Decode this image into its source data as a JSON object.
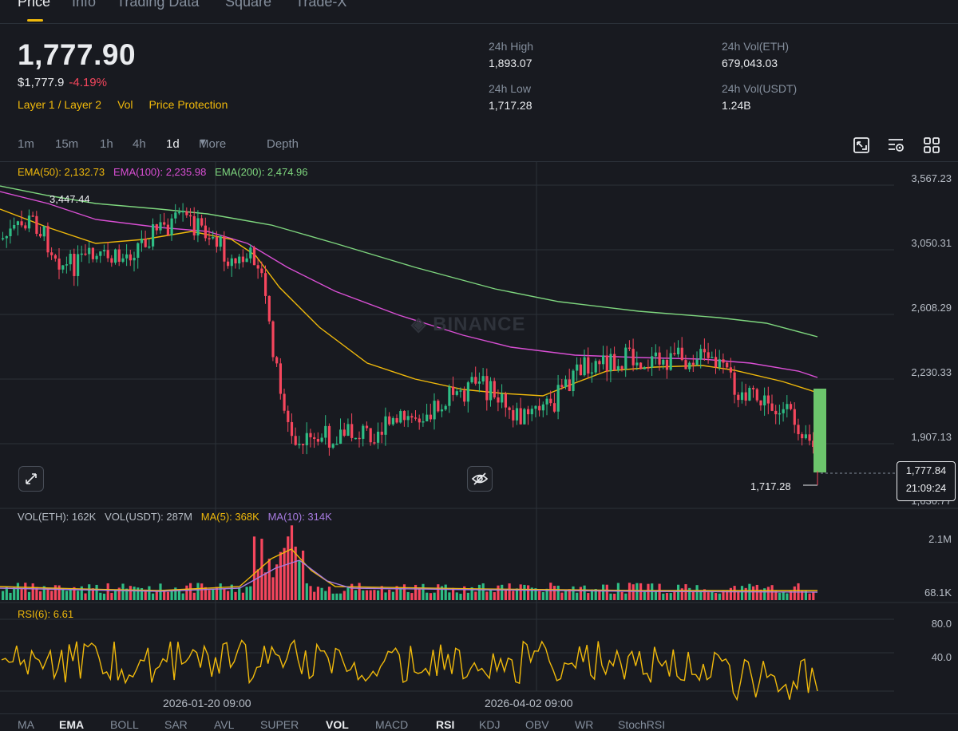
{
  "tabs": [
    "Price",
    "Info",
    "Trading Data",
    "Square",
    "Trade-X"
  ],
  "header": {
    "price": "1,777.90",
    "usd_price": "$1,777.9",
    "change": "-4.19%",
    "tags": [
      "Layer 1 / Layer 2",
      "Vol",
      "Price Protection"
    ]
  },
  "stats": {
    "high_label": "24h High",
    "high_value": "1,893.07",
    "low_label": "24h Low",
    "low_value": "1,717.28",
    "vol_eth_label": "24h Vol(ETH)",
    "vol_eth_value": "679,043.03",
    "vol_usdt_label": "24h Vol(USDT)",
    "vol_usdt_value": "1.24B"
  },
  "intervals": [
    "1m",
    "15m",
    "1h",
    "4h",
    "1d",
    "More",
    "Depth"
  ],
  "toolbar_icons": [
    "chart-settings-icon",
    "indicator-icon",
    "layout-grid-icon"
  ],
  "ema_legend": {
    "ema50": "EMA(50): 2,132.73",
    "ema100": "EMA(100): 2,235.98",
    "ema200": "EMA(200): 2,474.96"
  },
  "colors": {
    "up": "#2ebd85",
    "down": "#f6465d",
    "accent": "#f0b90b",
    "ema50": "#f0b90b",
    "ema100": "#d94fd4",
    "ema200": "#7ed67e",
    "rsi": "#f0b90b",
    "ma10": "#a77be0"
  },
  "price_axis": [
    "3,567.23",
    "3,050.31",
    "2,608.29",
    "2,230.33",
    "1,907.13",
    "1,630.77"
  ],
  "high_marker": "3,447.44",
  "low_marker": "1,717.28",
  "last_price_tag": {
    "price": "1,777.84",
    "countdown": "21:09:24"
  },
  "watermark": "BINANCE",
  "volume_legend": {
    "vol_eth": "VOL(ETH): 162K",
    "vol_usdt": "VOL(USDT): 287M",
    "ma5": "MA(5): 368K",
    "ma10": "MA(10): 314K"
  },
  "volume_axis": [
    "2.1M",
    "68.1K"
  ],
  "rsi_legend": "RSI(6): 6.61",
  "rsi_axis": [
    "80.0",
    "40.0"
  ],
  "date_axis": [
    "2026-01-20 09:00",
    "2026-04-02 09:00"
  ],
  "indicator_tabs": [
    "MA",
    "EMA",
    "BOLL",
    "SAR",
    "AVL",
    "SUPER",
    "VOL",
    "MACD",
    "RSI",
    "KDJ",
    "OBV",
    "WR",
    "StochRSI"
  ]
}
